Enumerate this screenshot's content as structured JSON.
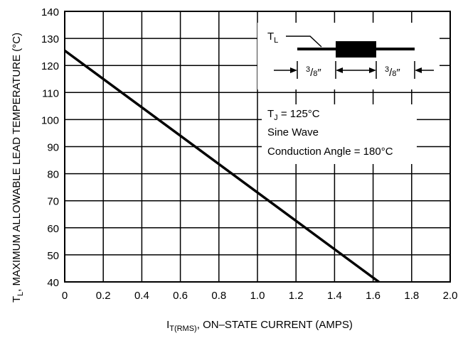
{
  "chart_data": {
    "type": "line",
    "xlabel": {
      "main": "I",
      "sub": "T(RMS)",
      "rest": ", ON–STATE CURRENT (AMPS)"
    },
    "ylabel": {
      "main": "T",
      "sub": "L",
      "rest": ", MAXIMUM ALLOWABLE LEAD TEMPERATURE (°C)"
    },
    "xlim": [
      0,
      2.0
    ],
    "ylim": [
      40,
      140
    ],
    "x_ticks": [
      "0",
      "0.2",
      "0.4",
      "0.6",
      "0.8",
      "1.0",
      "1.2",
      "1.4",
      "1.6",
      "1.8",
      "2.0"
    ],
    "y_ticks": [
      "40",
      "50",
      "60",
      "70",
      "80",
      "90",
      "100",
      "110",
      "120",
      "130",
      "140"
    ],
    "grid": true,
    "series": [
      {
        "x": [
          0,
          1.63
        ],
        "y": [
          125.5,
          40
        ]
      }
    ],
    "annotations": {
      "tj": {
        "main": "T",
        "sub": "J",
        "rest": " = 125°C"
      },
      "wave": "Sine Wave",
      "angle": "Conduction Angle = 180°C",
      "lead_label": {
        "main": "T",
        "sub": "L"
      },
      "dim_left": {
        "num": "3",
        "den": "8",
        "mark": "″"
      },
      "dim_right": {
        "num": "3",
        "den": "8",
        "mark": "″"
      }
    }
  }
}
